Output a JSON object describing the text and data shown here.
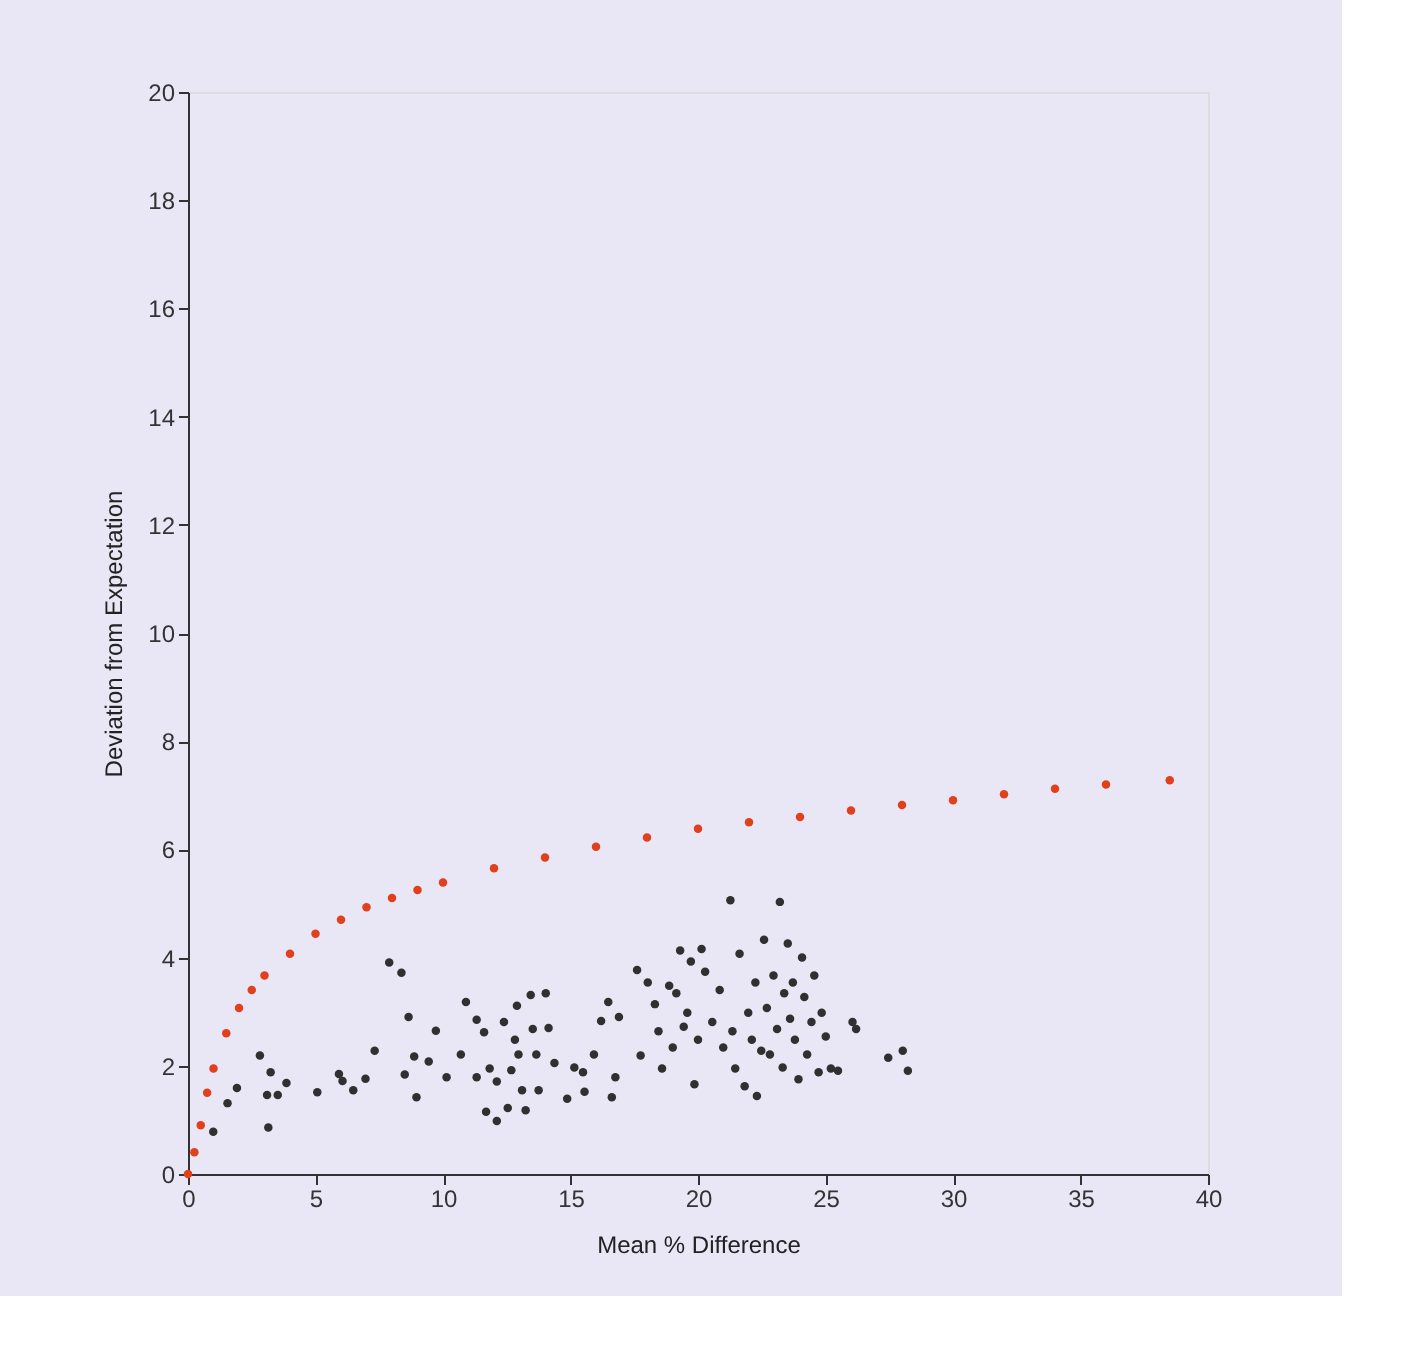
{
  "chart_data": {
    "type": "scatter",
    "xlabel": "Mean % Difference",
    "ylabel": "Deviation from Expectation",
    "xlim": [
      0,
      40
    ],
    "ylim": [
      0,
      20
    ],
    "xticks": [
      0,
      5,
      10,
      15,
      20,
      25,
      30,
      35,
      40
    ],
    "yticks": [
      0,
      2,
      4,
      6,
      8,
      10,
      12,
      14,
      16,
      18,
      20
    ],
    "grid": false,
    "legend": false,
    "marker": "circle",
    "series": [
      {
        "color": "#e0401c",
        "x": [
          0,
          0.25,
          0.5,
          0.75,
          1,
          1.5,
          2,
          2.5,
          3,
          4,
          5,
          6,
          7,
          8,
          9,
          10,
          12,
          14,
          16,
          18,
          20,
          22,
          24,
          26,
          28,
          30,
          32,
          34,
          36,
          38.5
        ],
        "values": [
          0,
          0.4,
          0.9,
          1.5,
          1.95,
          2.6,
          3.07,
          3.4,
          3.67,
          4.07,
          4.44,
          4.7,
          4.93,
          5.1,
          5.25,
          5.39,
          5.65,
          5.85,
          6.05,
          6.22,
          6.38,
          6.5,
          6.6,
          6.72,
          6.82,
          6.91,
          7.02,
          7.12,
          7.2,
          7.28
        ]
      },
      {
        "color": "#303030",
        "x": [
          0.99,
          1.55,
          1.92,
          2.82,
          3.24,
          3.1,
          3.15,
          3.52,
          3.86,
          5.07,
          5.92,
          6.06,
          6.48,
          6.96,
          7.32,
          7.89,
          8.37,
          8.5,
          8.65,
          8.96,
          8.87,
          9.44,
          9.72,
          10.14,
          10.7,
          10.9,
          11.32,
          11.32,
          11.61,
          11.69,
          11.83,
          12.11,
          12.11,
          12.39,
          12.54,
          12.68,
          12.82,
          12.9,
          12.96,
          13.1,
          13.24,
          13.44,
          13.52,
          13.66,
          13.75,
          14.03,
          14.14,
          14.37,
          14.87,
          15.15,
          15.49,
          15.55,
          15.92,
          16.2,
          16.48,
          16.62,
          16.76,
          16.9,
          17.61,
          17.75,
          18.03,
          18.31,
          18.45,
          18.59,
          18.87,
          19.01,
          19.15,
          19.3,
          19.44,
          19.58,
          19.72,
          19.86,
          20.0,
          20.14,
          20.28,
          20.56,
          20.85,
          20.99,
          21.27,
          21.35,
          21.46,
          21.63,
          21.83,
          21.97,
          22.11,
          22.25,
          22.31,
          22.48,
          22.59,
          22.7,
          22.82,
          22.96,
          23.1,
          23.21,
          23.32,
          23.38,
          23.52,
          23.61,
          23.72,
          23.8,
          23.94,
          24.08,
          24.17,
          24.28,
          24.45,
          24.56,
          24.73,
          24.85,
          25.01,
          25.21,
          25.49,
          26.06,
          26.2,
          27.46,
          28.03,
          28.23
        ],
        "values": [
          0.78,
          1.31,
          1.59,
          2.19,
          1.88,
          1.46,
          0.86,
          1.46,
          1.68,
          1.51,
          1.85,
          1.72,
          1.55,
          1.76,
          2.28,
          3.91,
          3.72,
          1.84,
          2.9,
          1.42,
          2.17,
          2.08,
          2.65,
          1.79,
          2.21,
          3.18,
          2.85,
          1.79,
          2.62,
          1.15,
          1.95,
          0.98,
          1.71,
          2.81,
          1.22,
          1.92,
          2.48,
          3.11,
          2.21,
          1.55,
          1.18,
          3.31,
          2.68,
          2.21,
          1.55,
          3.34,
          2.7,
          2.05,
          1.39,
          1.97,
          1.88,
          1.52,
          2.21,
          2.83,
          3.18,
          1.42,
          1.79,
          2.9,
          3.77,
          2.19,
          3.54,
          3.14,
          2.64,
          1.95,
          3.48,
          2.34,
          3.34,
          4.13,
          2.72,
          2.98,
          3.93,
          1.66,
          2.48,
          4.16,
          3.74,
          2.81,
          3.4,
          2.34,
          5.06,
          2.64,
          1.95,
          4.07,
          1.62,
          2.98,
          2.48,
          3.54,
          1.44,
          2.28,
          4.33,
          3.07,
          2.21,
          3.67,
          2.68,
          5.03,
          1.97,
          3.34,
          4.26,
          2.87,
          3.54,
          2.48,
          1.75,
          4.0,
          3.27,
          2.21,
          2.81,
          3.67,
          1.88,
          2.98,
          2.54,
          1.95,
          1.91,
          2.81,
          2.68,
          2.15,
          2.28,
          1.91
        ]
      }
    ]
  }
}
